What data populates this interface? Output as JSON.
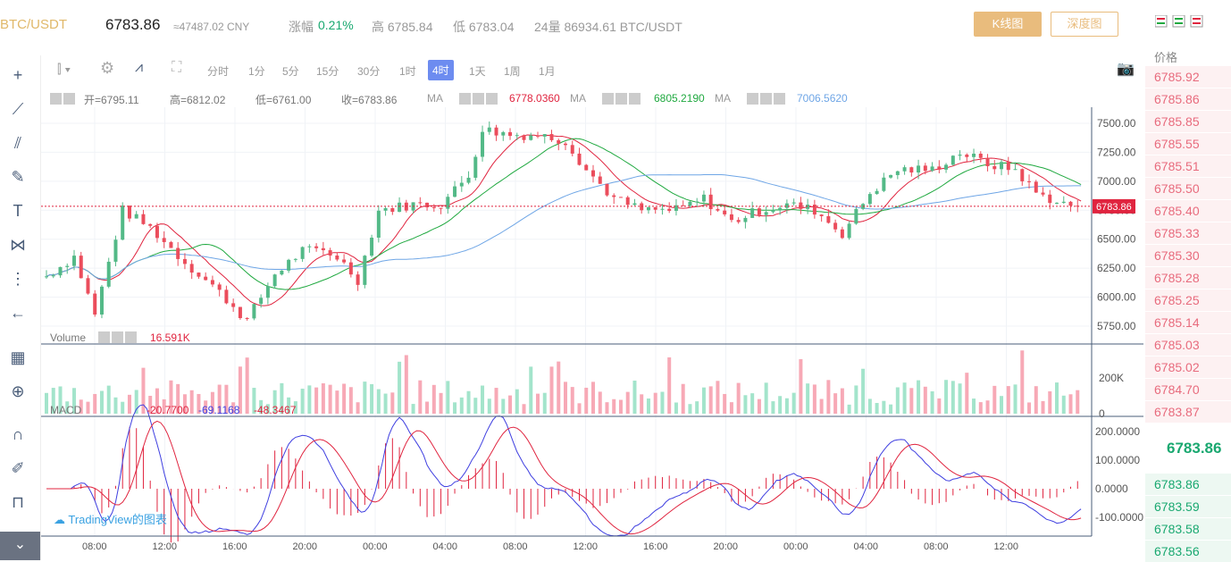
{
  "header": {
    "pair": "BTC/USDT",
    "last_price": "6783.86",
    "cny": "≈47487.02 CNY",
    "change_label": "涨幅",
    "change_value": "0.21%",
    "high_label": "高 6785.84",
    "low_label": "低 6783.04",
    "volume_label": "24量 86934.61 BTC/USDT",
    "kline_btn": "K线图",
    "depth_btn": "深度图"
  },
  "intervals": [
    "分时",
    "1分",
    "5分",
    "15分",
    "30分",
    "1时",
    "4时",
    "1天",
    "1周",
    "1月"
  ],
  "active_interval": "4时",
  "ohlc": {
    "open": "开=6795.11",
    "high": "高=6812.02",
    "low": "低=6761.00",
    "close": "收=6783.86"
  },
  "ma": [
    {
      "label": "MA",
      "value": "6778.0360",
      "color": "#e0243f"
    },
    {
      "label": "MA",
      "value": "6805.2190",
      "color": "#20a940"
    },
    {
      "label": "MA",
      "value": "7006.5620",
      "color": "#6fa6e6"
    }
  ],
  "volume_legend": {
    "label": "Volume",
    "value": "16.591K"
  },
  "macd_legend": {
    "label": "MACD",
    "v1": "-20.7700",
    "v2": "-69.1168",
    "v3": "-48.3467"
  },
  "price_axis": [
    "7500.00",
    "7250.00",
    "7000.00",
    "6750.00",
    "6500.00",
    "6250.00",
    "6000.00",
    "5750.00"
  ],
  "price_tag": "6783.86",
  "volume_axis": [
    "200K",
    "0"
  ],
  "macd_axis": [
    "200.0000",
    "100.0000",
    "0.0000",
    "-100.0000"
  ],
  "time_axis": [
    "08:00",
    "12:00",
    "16:00",
    "20:00",
    "00:00",
    "04:00",
    "08:00",
    "12:00",
    "16:00",
    "20:00",
    "00:00",
    "04:00",
    "08:00",
    "12:00"
  ],
  "orderbook": {
    "title": "价格",
    "asks": [
      "6785.92",
      "6785.86",
      "6785.85",
      "6785.55",
      "6785.51",
      "6785.50",
      "6785.40",
      "6785.33",
      "6785.30",
      "6785.28",
      "6785.25",
      "6785.14",
      "6785.03",
      "6785.02",
      "6784.70",
      "6783.87"
    ],
    "last": "6783.86",
    "bids": [
      "6783.86",
      "6783.59",
      "6783.58",
      "6783.56"
    ]
  },
  "tv_logo": "TradingView的图表",
  "colors": {
    "up": "#53b987",
    "down": "#eb4d5c",
    "ma1": "#e0243f",
    "ma2": "#20a940",
    "ma3": "#6fa6e6"
  }
}
